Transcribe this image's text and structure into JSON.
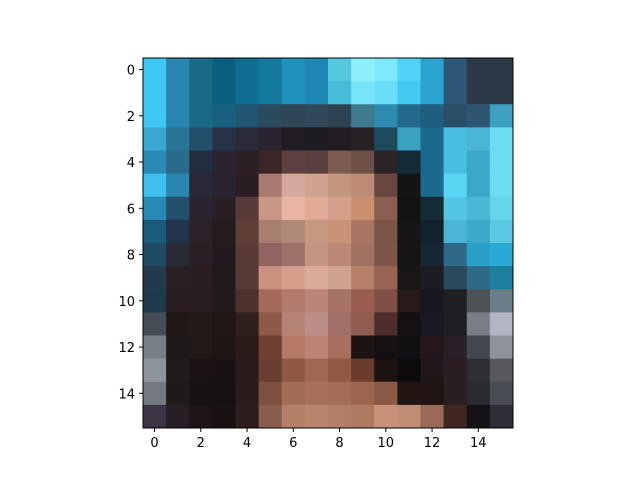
{
  "chart_data": {
    "type": "heatmap",
    "title": "",
    "xlabel": "",
    "ylabel": "",
    "xlim": [
      -0.5,
      15.5
    ],
    "ylim": [
      15.5,
      -0.5
    ],
    "grid": false,
    "x_ticks": [
      0,
      2,
      4,
      6,
      8,
      10,
      12,
      14
    ],
    "y_ticks": [
      0,
      2,
      4,
      6,
      8,
      10,
      12,
      14
    ],
    "x_tick_labels": [
      "0",
      "2",
      "4",
      "6",
      "8",
      "10",
      "12",
      "14"
    ],
    "y_tick_labels": [
      "0",
      "2",
      "4",
      "6",
      "8",
      "10",
      "12",
      "14"
    ],
    "pixels": [
      [
        "#3ec7f2",
        "#2a86b0",
        "#1a6a86",
        "#0b5f7e",
        "#0e6e92",
        "#137a9e",
        "#1e92bc",
        "#1f86b3",
        "#55c8e0",
        "#8ef0fb",
        "#7ee9fb",
        "#4fd2f4",
        "#2aa3cf",
        "#2d5677",
        "#2c3a48",
        "#2c3a48"
      ],
      [
        "#3ec7f2",
        "#2a86b0",
        "#1a6a86",
        "#0b5f7e",
        "#0e6e92",
        "#137a9e",
        "#1e92bc",
        "#1f86b3",
        "#46bcd8",
        "#78e4f8",
        "#6adef8",
        "#43c9ef",
        "#2aa3cf",
        "#2d5677",
        "#2c3a48",
        "#2c3a48"
      ],
      [
        "#3ec7f2",
        "#2a86b0",
        "#1a6a86",
        "#17607e",
        "#205670",
        "#2a4a5e",
        "#2e4656",
        "#30485a",
        "#2c4252",
        "#3e7a8e",
        "#2e8ab0",
        "#24688c",
        "#1e5f80",
        "#2a4e66",
        "#2f5670",
        "#3ea0c0"
      ],
      [
        "#38a8d0",
        "#2a7496",
        "#224e6a",
        "#263248",
        "#2a2a38",
        "#2a2430",
        "#201c22",
        "#1e1c22",
        "#221c22",
        "#282226",
        "#1e4a5e",
        "#3aa2c0",
        "#1a6a8e",
        "#48bfe0",
        "#4ab5d6",
        "#6adef0"
      ],
      [
        "#2a8ab6",
        "#2a6a8a",
        "#222e3e",
        "#2a2430",
        "#2a2026",
        "#3a2628",
        "#5e4040",
        "#58403e",
        "#7c5c52",
        "#6e5048",
        "#2a2426",
        "#142a34",
        "#1a6a8e",
        "#46bfe0",
        "#3aa8c8",
        "#6adef0"
      ],
      [
        "#3ebfee",
        "#2a86b0",
        "#2a2836",
        "#2a2430",
        "#2a1e24",
        "#a87a6e",
        "#d4a89a",
        "#d0a290",
        "#c4967e",
        "#be8c76",
        "#6a4640",
        "#141414",
        "#1a6a8e",
        "#5ad6f4",
        "#3aa8c8",
        "#6adef0"
      ],
      [
        "#2a8ab6",
        "#22506a",
        "#2a2430",
        "#281e24",
        "#5a3a38",
        "#c89884",
        "#e6b6a2",
        "#e0aa96",
        "#d4a08a",
        "#c8906e",
        "#8a5e50",
        "#121212",
        "#142a34",
        "#52c6e4",
        "#48b8d4",
        "#64d6ea"
      ],
      [
        "#1a5a7a",
        "#22344a",
        "#2a2228",
        "#261c20",
        "#5e3e36",
        "#a87e70",
        "#b08878",
        "#c69880",
        "#c89276",
        "#aa7664",
        "#7a5446",
        "#161414",
        "#12222c",
        "#4ab5d6",
        "#3aa8c8",
        "#5ac8e0"
      ],
      [
        "#1e4a62",
        "#2a2a34",
        "#2a2026",
        "#221a1e",
        "#5a3a34",
        "#906460",
        "#9e706a",
        "#c69482",
        "#ba8a76",
        "#a07060",
        "#7e5648",
        "#161414",
        "#162634",
        "#2e6a88",
        "#28a0c8",
        "#2aa8d6"
      ],
      [
        "#223a4c",
        "#2a2024",
        "#2a1e22",
        "#201a1c",
        "#583a34",
        "#cc9280",
        "#d69e8a",
        "#dcaa98",
        "#d0a290",
        "#b6806a",
        "#9a6454",
        "#1a1616",
        "#1c1c24",
        "#2a4a5e",
        "#2e6a88",
        "#1e7e9e"
      ],
      [
        "#1e3a4a",
        "#2a1e20",
        "#2a1e22",
        "#221a1c",
        "#4e322e",
        "#a66a5c",
        "#b27a6c",
        "#ba8678",
        "#a67466",
        "#9a5e50",
        "#805046",
        "#281a1a",
        "#181620",
        "#1e2024",
        "#4c5258",
        "#6c7e8a"
      ],
      [
        "#444c54",
        "#201816",
        "#261a18",
        "#201616",
        "#2e201c",
        "#8e5a48",
        "#b68474",
        "#bc8e88",
        "#a07068",
        "#905c50",
        "#4e2e2c",
        "#141014",
        "#181820",
        "#1e1e22",
        "#7a7e86",
        "#b2b6c2"
      ],
      [
        "#787e86",
        "#1e1a1a",
        "#221a18",
        "#1e1614",
        "#2a1a18",
        "#704032",
        "#b47a64",
        "#bc8474",
        "#a86e5e",
        "#1c1412",
        "#141014",
        "#121012",
        "#24181e",
        "#2a2028",
        "#444650",
        "#8e929c"
      ],
      [
        "#8e949e",
        "#201c1c",
        "#1c1414",
        "#1a1212",
        "#2a1c1c",
        "#6a3e30",
        "#8e5844",
        "#a06852",
        "#905a44",
        "#6a3c2e",
        "#1c1210",
        "#0c0a0a",
        "#201618",
        "#2a1e24",
        "#2e2e34",
        "#56585e"
      ],
      [
        "#747880",
        "#1e1a1a",
        "#181212",
        "#181010",
        "#2a1c1c",
        "#7e5040",
        "#a06c54",
        "#a6705a",
        "#a46e56",
        "#9c664e",
        "#8a5a46",
        "#221410",
        "#201412",
        "#2a1e22",
        "#2a2a30",
        "#4a4c54"
      ],
      [
        "#3c3444",
        "#281e26",
        "#1c1416",
        "#1a1212",
        "#2c1e1e",
        "#8a5e4e",
        "#b48068",
        "#b8846c",
        "#b27e68",
        "#ae7a62",
        "#c8927a",
        "#c08c74",
        "#9a6a58",
        "#402822",
        "#141214",
        "#2e2e36"
      ]
    ]
  }
}
